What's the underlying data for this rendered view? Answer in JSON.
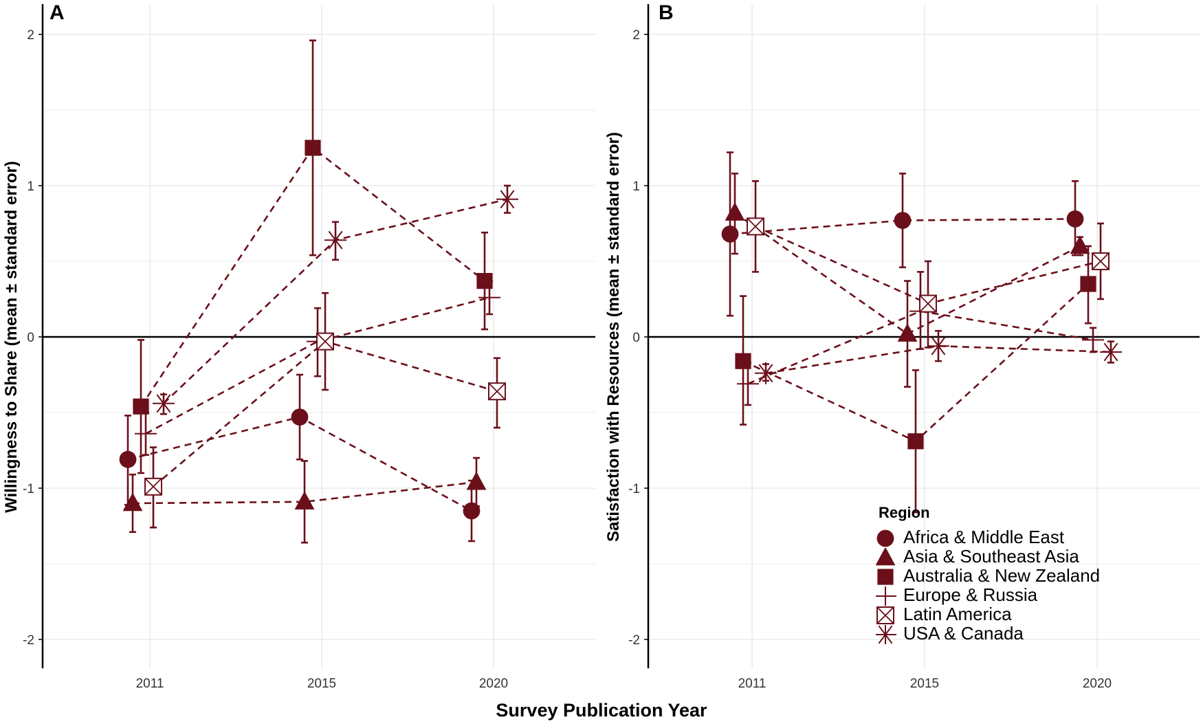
{
  "colors": {
    "series": "#6B0F1A",
    "axis": "#000000",
    "grid": "#ebebeb"
  },
  "chart_data": [
    {
      "type": "scatter",
      "panel_label": "A",
      "xlabel": "Survey Publication Year",
      "ylabel": "Willingness to Share (mean ± standard error)",
      "x_ticks": [
        "2011",
        "2015",
        "2020"
      ],
      "y_ticks": [
        "-2",
        "-1",
        "0",
        "1",
        "2"
      ],
      "ylim": [
        -2.2,
        2.1
      ],
      "grid": true,
      "series": [
        {
          "name": "Africa & Middle East",
          "marker": "circle",
          "points": [
            {
              "x": "2011",
              "y": -0.81,
              "lo": -1.11,
              "hi": -0.52
            },
            {
              "x": "2015",
              "y": -0.53,
              "lo": -0.81,
              "hi": -0.25
            },
            {
              "x": "2020",
              "y": -1.15,
              "lo": -1.35,
              "hi": -0.95
            }
          ]
        },
        {
          "name": "Asia & Southeast Asia",
          "marker": "triangle",
          "points": [
            {
              "x": "2011",
              "y": -1.1,
              "lo": -1.29,
              "hi": -0.91
            },
            {
              "x": "2015",
              "y": -1.09,
              "lo": -1.36,
              "hi": -0.82
            },
            {
              "x": "2020",
              "y": -0.96,
              "lo": -1.12,
              "hi": -0.8
            }
          ]
        },
        {
          "name": "Australia & New Zealand",
          "marker": "square",
          "points": [
            {
              "x": "2011",
              "y": -0.46,
              "lo": -0.9,
              "hi": -0.02
            },
            {
              "x": "2015",
              "y": 1.25,
              "lo": 0.54,
              "hi": 1.96
            },
            {
              "x": "2020",
              "y": 0.37,
              "lo": 0.05,
              "hi": 0.69
            }
          ]
        },
        {
          "name": "Europe & Russia",
          "marker": "plus",
          "points": [
            {
              "x": "2011",
              "y": -0.64,
              "lo": -0.78,
              "hi": -0.5
            },
            {
              "x": "2015",
              "y": -0.03,
              "lo": -0.26,
              "hi": 0.19
            },
            {
              "x": "2020",
              "y": 0.26,
              "lo": 0.15,
              "hi": 0.37
            }
          ]
        },
        {
          "name": "Latin America",
          "marker": "boxtimes",
          "points": [
            {
              "x": "2011",
              "y": -0.99,
              "lo": -1.26,
              "hi": -0.73
            },
            {
              "x": "2015",
              "y": -0.03,
              "lo": -0.35,
              "hi": 0.29
            },
            {
              "x": "2020",
              "y": -0.36,
              "lo": -0.6,
              "hi": -0.14
            }
          ]
        },
        {
          "name": "USA & Canada",
          "marker": "asterisk",
          "points": [
            {
              "x": "2011",
              "y": -0.44,
              "lo": -0.51,
              "hi": -0.38
            },
            {
              "x": "2015",
              "y": 0.64,
              "lo": 0.51,
              "hi": 0.76
            },
            {
              "x": "2020",
              "y": 0.91,
              "lo": 0.82,
              "hi": 1.0
            }
          ]
        }
      ]
    },
    {
      "type": "scatter",
      "panel_label": "B",
      "xlabel": "",
      "ylabel": "Satisfaction with Resources (mean ± standard error)",
      "x_ticks": [
        "2011",
        "2015",
        "2020"
      ],
      "y_ticks": [
        "-2",
        "-1",
        "0",
        "1",
        "2"
      ],
      "ylim": [
        -2.2,
        2.1
      ],
      "grid": true,
      "series": [
        {
          "name": "Africa & Middle East",
          "marker": "circle",
          "points": [
            {
              "x": "2011",
              "y": 0.68,
              "lo": 0.14,
              "hi": 1.22
            },
            {
              "x": "2015",
              "y": 0.77,
              "lo": 0.46,
              "hi": 1.08
            },
            {
              "x": "2020",
              "y": 0.78,
              "lo": 0.54,
              "hi": 1.03
            }
          ]
        },
        {
          "name": "Asia & Southeast Asia",
          "marker": "triangle",
          "points": [
            {
              "x": "2011",
              "y": 0.82,
              "lo": 0.55,
              "hi": 1.08
            },
            {
              "x": "2015",
              "y": 0.02,
              "lo": -0.33,
              "hi": 0.37
            },
            {
              "x": "2020",
              "y": 0.6,
              "lo": 0.54,
              "hi": 0.66
            }
          ]
        },
        {
          "name": "Australia & New Zealand",
          "marker": "square",
          "points": [
            {
              "x": "2011",
              "y": -0.16,
              "lo": -0.58,
              "hi": 0.27
            },
            {
              "x": "2015",
              "y": -0.69,
              "lo": -1.16,
              "hi": -0.22
            },
            {
              "x": "2020",
              "y": 0.35,
              "lo": 0.09,
              "hi": 0.6
            }
          ]
        },
        {
          "name": "Europe & Russia",
          "marker": "plus",
          "points": [
            {
              "x": "2011",
              "y": -0.31,
              "lo": -0.45,
              "hi": -0.17
            },
            {
              "x": "2015",
              "y": 0.17,
              "lo": -0.08,
              "hi": 0.43
            },
            {
              "x": "2020",
              "y": -0.02,
              "lo": -0.1,
              "hi": 0.06
            }
          ]
        },
        {
          "name": "Latin America",
          "marker": "boxtimes",
          "points": [
            {
              "x": "2011",
              "y": 0.73,
              "lo": 0.43,
              "hi": 1.03
            },
            {
              "x": "2015",
              "y": 0.22,
              "lo": -0.07,
              "hi": 0.5
            },
            {
              "x": "2020",
              "y": 0.5,
              "lo": 0.25,
              "hi": 0.75
            }
          ]
        },
        {
          "name": "USA & Canada",
          "marker": "asterisk",
          "points": [
            {
              "x": "2011",
              "y": -0.24,
              "lo": -0.29,
              "hi": -0.18
            },
            {
              "x": "2015",
              "y": -0.06,
              "lo": -0.16,
              "hi": 0.04
            },
            {
              "x": "2020",
              "y": -0.1,
              "lo": -0.17,
              "hi": -0.03
            }
          ]
        }
      ]
    }
  ],
  "legend": {
    "title": "Region",
    "items": [
      {
        "label": "Africa & Middle East",
        "marker": "circle"
      },
      {
        "label": "Asia & Southeast Asia",
        "marker": "triangle"
      },
      {
        "label": "Australia & New Zealand",
        "marker": "square"
      },
      {
        "label": "Europe & Russia",
        "marker": "plus"
      },
      {
        "label": "Latin America",
        "marker": "boxtimes"
      },
      {
        "label": "USA & Canada",
        "marker": "asterisk"
      }
    ]
  }
}
